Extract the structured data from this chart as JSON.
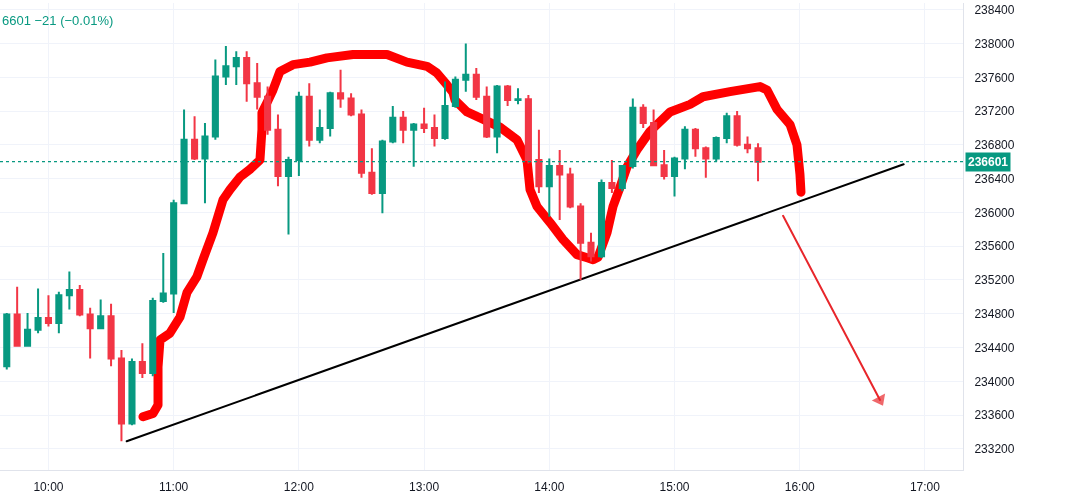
{
  "chart_data": {
    "type": "candlestick",
    "x": [
      9.667,
      9.75,
      9.833,
      9.917,
      10,
      10.083,
      10.167,
      10.25,
      10.333,
      10.417,
      10.5,
      10.583,
      10.667,
      10.75,
      10.833,
      10.917,
      11,
      11.083,
      11.167,
      11.25,
      11.333,
      11.417,
      11.5,
      11.583,
      11.667,
      11.75,
      11.833,
      11.917,
      12,
      12.083,
      12.167,
      12.25,
      12.333,
      12.417,
      12.5,
      12.583,
      12.667,
      12.75,
      12.833,
      12.917,
      13,
      13.083,
      13.167,
      13.25,
      13.333,
      13.417,
      13.5,
      13.583,
      13.667,
      13.75,
      13.833,
      13.917,
      14,
      14.083,
      14.167,
      14.25,
      14.333,
      14.417,
      14.5,
      14.583,
      14.667,
      14.75,
      14.833,
      14.917,
      15,
      15.083,
      15.167,
      15.25,
      15.333,
      15.417,
      15.5,
      15.583,
      15.667
    ],
    "ohlc": [
      [
        234180,
        234810,
        234140,
        234790
      ],
      [
        234790,
        235120,
        234410,
        234420
      ],
      [
        234420,
        234810,
        234410,
        234610
      ],
      [
        234610,
        235100,
        234570,
        234750
      ],
      [
        234750,
        235020,
        234650,
        234690
      ],
      [
        234690,
        235060,
        234570,
        235020
      ],
      [
        235020,
        235300,
        234850,
        235080
      ],
      [
        235080,
        235140,
        234770,
        234790
      ],
      [
        234790,
        234870,
        234270,
        234630
      ],
      [
        234630,
        234970,
        234630,
        234770
      ],
      [
        234770,
        234920,
        234180,
        234270
      ],
      [
        234270,
        234370,
        233290,
        233500
      ],
      [
        233500,
        234270,
        233480,
        234230
      ],
      [
        234230,
        234450,
        234040,
        234100
      ],
      [
        234100,
        234990,
        234060,
        234950
      ],
      [
        234950,
        235520,
        234930,
        235040
      ],
      [
        235040,
        236150,
        234810,
        236110
      ],
      [
        236110,
        237220,
        236100,
        236860
      ],
      [
        236860,
        237140,
        236620,
        236640
      ],
      [
        236640,
        237060,
        236110,
        236900
      ],
      [
        236900,
        237810,
        236860,
        237610
      ],
      [
        237610,
        237970,
        237510,
        237730
      ],
      [
        237730,
        237910,
        237510,
        237830
      ],
      [
        237830,
        237910,
        237310,
        237530
      ],
      [
        237530,
        237770,
        237220,
        237370
      ],
      [
        237370,
        237490,
        236920,
        236980
      ],
      [
        236980,
        237160,
        236310,
        236430
      ],
      [
        236430,
        236660,
        235740,
        236620
      ],
      [
        236620,
        237430,
        236430,
        237370
      ],
      [
        237370,
        237530,
        236780,
        236860
      ],
      [
        236860,
        237220,
        236820,
        237000
      ],
      [
        237000,
        237430,
        236900,
        237410
      ],
      [
        237410,
        237690,
        237240,
        237350
      ],
      [
        237350,
        237410,
        237140,
        237160
      ],
      [
        237160,
        237220,
        236410,
        236470
      ],
      [
        236470,
        236760,
        236210,
        236230
      ],
      [
        236230,
        236860,
        235990,
        236840
      ],
      [
        236840,
        237260,
        236820,
        237120
      ],
      [
        237120,
        237200,
        236820,
        236980
      ],
      [
        236980,
        237060,
        236540,
        237040
      ],
      [
        237040,
        237240,
        236940,
        237000
      ],
      [
        237000,
        237160,
        236780,
        236880
      ],
      [
        236880,
        237550,
        236860,
        237260
      ],
      [
        237260,
        237610,
        237240,
        237570
      ],
      [
        237570,
        238000,
        237430,
        237630
      ],
      [
        237630,
        237710,
        237330,
        237370
      ],
      [
        237370,
        237490,
        236880,
        236900
      ],
      [
        236900,
        237510,
        236700,
        237490
      ],
      [
        237490,
        237510,
        237260,
        237330
      ],
      [
        237330,
        237470,
        237280,
        237340
      ],
      [
        237340,
        237390,
        236580,
        236620
      ],
      [
        236620,
        236980,
        236230,
        236310
      ],
      [
        236310,
        236640,
        235950,
        236550
      ],
      [
        236550,
        236740,
        235910,
        236450
      ],
      [
        236450,
        236530,
        236050,
        236070
      ],
      [
        236070,
        236110,
        235200,
        235640
      ],
      [
        235640,
        235760,
        235420,
        235480
      ],
      [
        235480,
        236390,
        235460,
        236350
      ],
      [
        236350,
        236620,
        236230,
        236290
      ],
      [
        236290,
        236560,
        236250,
        236550
      ],
      [
        236550,
        237350,
        236520,
        237240
      ],
      [
        237240,
        237280,
        237000,
        237060
      ],
      [
        237060,
        237220,
        236550,
        236560
      ],
      [
        236560,
        236740,
        236390,
        236430
      ],
      [
        236430,
        236660,
        236190,
        236640
      ],
      [
        236640,
        237020,
        236510,
        236980
      ],
      [
        236980,
        237000,
        236660,
        236760
      ],
      [
        236760,
        236780,
        236410,
        236640
      ],
      [
        236640,
        236900,
        236600,
        236880
      ],
      [
        236880,
        237180,
        236820,
        237140
      ],
      [
        237140,
        237200,
        236780,
        236800
      ],
      [
        236800,
        236900,
        236700,
        236760
      ],
      [
        236760,
        236820,
        236370,
        236601
      ]
    ],
    "colors": [
      "#089981",
      "#f23645",
      "#089981",
      "#089981",
      "#f23645",
      "#089981",
      "#089981",
      "#f23645",
      "#f23645",
      "#089981",
      "#f23645",
      "#f23645",
      "#089981",
      "#f23645",
      "#089981",
      "#089981",
      "#089981",
      "#089981",
      "#f23645",
      "#089981",
      "#089981",
      "#089981",
      "#089981",
      "#f23645",
      "#f23645",
      "#f23645",
      "#f23645",
      "#089981",
      "#089981",
      "#f23645",
      "#089981",
      "#089981",
      "#f23645",
      "#f23645",
      "#f23645",
      "#f23645",
      "#089981",
      "#089981",
      "#f23645",
      "#089981",
      "#f23645",
      "#f23645",
      "#089981",
      "#089981",
      "#089981",
      "#f23645",
      "#f23645",
      "#089981",
      "#f23645",
      "#089981",
      "#f23645",
      "#f23645",
      "#089981",
      "#f23645",
      "#f23645",
      "#f23645",
      "#f23645",
      "#089981",
      "#f23645",
      "#089981",
      "#089981",
      "#f23645",
      "#f23645",
      "#f23645",
      "#089981",
      "#089981",
      "#f23645",
      "#f23645",
      "#089981",
      "#089981",
      "#f23645",
      "#f23645",
      "#f23645"
    ],
    "series": [
      {
        "type": "line",
        "color": "#ff0000",
        "x": [
          10.755,
          10.835,
          10.875,
          10.875,
          10.891,
          10.97,
          11.05,
          11.106,
          11.186,
          11.234,
          11.314,
          11.394,
          11.45,
          11.53,
          11.609,
          11.689,
          11.705,
          11.705,
          11.745,
          11.793,
          11.849,
          11.953,
          12.089,
          12.224,
          12.432,
          12.704,
          12.863,
          13.023,
          13.103,
          13.183,
          13.231,
          13.247,
          13.343,
          13.447,
          13.606,
          13.742,
          13.822,
          13.846,
          13.902,
          14.006,
          14.109,
          14.221,
          14.309,
          14.349,
          14.389,
          14.461,
          14.509,
          14.565,
          14.621,
          14.7,
          14.804,
          14.964,
          15.124,
          15.228,
          15.443,
          15.683,
          15.739,
          15.819,
          15.923,
          15.978,
          16.002,
          16.01
        ],
        "values": [
          233580,
          233620,
          233720,
          234170,
          234490,
          234570,
          234760,
          235050,
          235240,
          235440,
          235760,
          236150,
          236270,
          236420,
          236510,
          236620,
          236980,
          237180,
          237300,
          237450,
          237670,
          237750,
          237780,
          237830,
          237870,
          237870,
          237780,
          237730,
          237650,
          237510,
          237420,
          237330,
          237190,
          237120,
          237010,
          236860,
          236620,
          236270,
          236070,
          235880,
          235680,
          235500,
          235460,
          235440,
          235470,
          235760,
          236070,
          236300,
          236540,
          236740,
          236960,
          237190,
          237280,
          237370,
          237430,
          237490,
          237450,
          237220,
          237040,
          236800,
          236450,
          236240
        ]
      },
      {
        "type": "line",
        "color": "#000000",
        "x": [
          10.625,
          16.83
        ],
        "values": [
          233290,
          236570
        ]
      },
      {
        "type": "line",
        "color": "#e8262b",
        "x": [
          15.867,
          16.641
        ],
        "values": [
          235960,
          233780
        ],
        "marker": "triangle"
      }
    ],
    "ref_lines": [
      {
        "axis": "y",
        "value": 236601,
        "label": "236601",
        "color": "#089981",
        "line_style": "dotted"
      }
    ],
    "annotations": [
      "6601 −21 (−0.01%)"
    ],
    "xlim": [
      9.613,
      17.304
    ],
    "xticks": [
      {
        "value": 10,
        "label": "10:00"
      },
      {
        "value": 11,
        "label": "11:00"
      },
      {
        "value": 12,
        "label": "12:00"
      },
      {
        "value": 13,
        "label": "13:00"
      },
      {
        "value": 14,
        "label": "14:00"
      },
      {
        "value": 15,
        "label": "15:00"
      },
      {
        "value": 16,
        "label": "16:00"
      },
      {
        "value": 17,
        "label": "17:00"
      }
    ],
    "ylim": [
      232950,
      238480
    ],
    "yticks": [
      233200,
      233600,
      234000,
      234400,
      234800,
      235200,
      235600,
      236000,
      236400,
      236800,
      237200,
      237600,
      238000,
      238400
    ],
    "grid": true
  }
}
